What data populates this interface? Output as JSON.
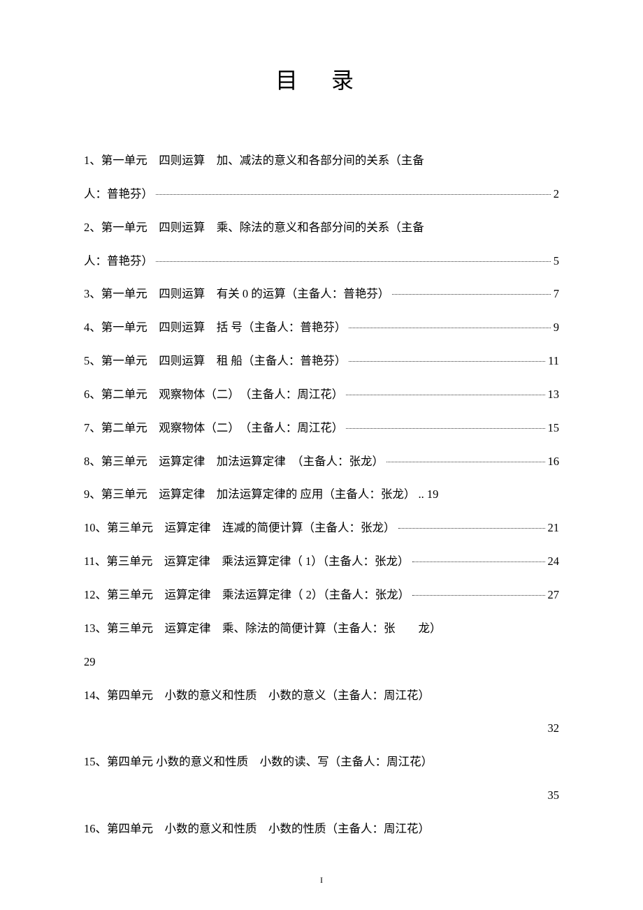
{
  "title": "目 录",
  "background_color": "#ffffff",
  "text_color": "#000000",
  "font_family": "SimSun",
  "title_fontsize": 32,
  "body_fontsize": 16.5,
  "line_height": 2.9,
  "leader_styles": {
    "thin": "dotted-underline",
    "dense": "repeated-dots"
  },
  "entries": [
    {
      "type": "multiline",
      "line1": "1、第一单元　四则运算　加、减法的意义和各部分间的关系（主备",
      "line2": "人：普艳芬）",
      "page": "2",
      "leader": "thin"
    },
    {
      "type": "multiline",
      "line1": "2、第一单元　四则运算　乘、除法的意义和各部分间的关系（主备",
      "line2": "人：普艳芬）",
      "page": "5",
      "leader": "thin"
    },
    {
      "type": "single",
      "text": "3、第一单元　四则运算　有关 0 的运算（主备人：普艳芬）",
      "page": "7",
      "leader": "thin"
    },
    {
      "type": "single",
      "text": "4、第一单元　四则运算　括 号（主备人：普艳芬）",
      "page": "9",
      "leader": "thin"
    },
    {
      "type": "single",
      "text": "5、第一单元　四则运算　租 船（主备人：普艳芬）",
      "page": "11",
      "leader": "thin"
    },
    {
      "type": "single",
      "text": "6、第二单元　观察物体（二）　（主备人：周江花）",
      "page": "13",
      "leader": "thin"
    },
    {
      "type": "single",
      "text": "7、第二单元　观察物体（二）　（主备人：周江花）",
      "page": "15",
      "leader": "thin"
    },
    {
      "type": "single",
      "text": "8、第三单元　运算定律　加法运算定律　（主备人：张龙）",
      "page": "16",
      "leader": "thin"
    },
    {
      "type": "single-nolead",
      "text": "9、第三单元　运算定律　加法运算定律的 应用（主备人：张龙） .. 19",
      "page": "",
      "leader": "none"
    },
    {
      "type": "single",
      "text": "10、第三单元　运算定律　连减的简便计算（主备人：张龙）",
      "page": "21",
      "leader": "thin"
    },
    {
      "type": "single",
      "text": "11、第三单元　运算定律　乘法运算定律（ 1）（主备人：张龙）",
      "page": "24",
      "leader": "thin"
    },
    {
      "type": "single",
      "text": "12、第三单元　运算定律　乘法运算定律（ 2）（主备人：张龙）",
      "page": "27",
      "leader": "thin"
    },
    {
      "type": "multiline-nopage",
      "line1": "13、第三单元　运算定律　乘、除法的简便计算（主备人：张　　龙）",
      "line2": "29",
      "page": "",
      "leader": "none"
    },
    {
      "type": "multiline-dense",
      "line1": "14、第四单元　小数的意义和性质　小数的意义（主备人：周江花）",
      "line2": "",
      "page": "32",
      "leader": "dense"
    },
    {
      "type": "multiline-dense",
      "line1": "15、第四单元 小数的意义和性质　小数的读、写（主备人：周江花）",
      "line2": "",
      "page": "35",
      "leader": "dense"
    },
    {
      "type": "text-only",
      "text": "16、第四单元　小数的意义和性质　小数的性质（主备人：周江花）",
      "page": "",
      "leader": "none"
    }
  ],
  "footer": "I"
}
